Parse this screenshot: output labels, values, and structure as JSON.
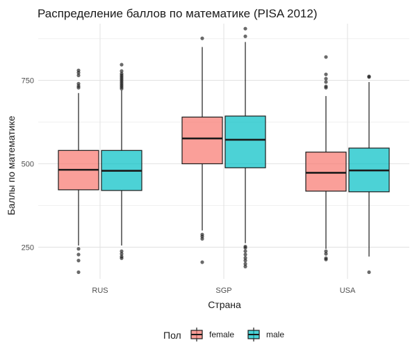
{
  "chart_data": {
    "type": "boxplot",
    "title": "Распределение баллов по математике (PISA 2012)",
    "xlabel": "Страна",
    "ylabel": "Баллы по математике",
    "categories": [
      "RUS",
      "SGP",
      "USA"
    ],
    "ylim": [
      155,
      920
    ],
    "yticks": [
      250,
      500,
      750
    ],
    "grid": true,
    "legend": {
      "title": "Пол",
      "position": "bottom",
      "entries": [
        {
          "key": "female",
          "label": "female",
          "color": "#F8766D"
        },
        {
          "key": "male",
          "label": "male",
          "color": "#00BFC4"
        }
      ]
    },
    "series": [
      {
        "key": "female",
        "color": "#F8766D",
        "boxes": [
          {
            "category": "RUS",
            "whisker_low": 255,
            "q1": 422,
            "median": 482,
            "q3": 540,
            "whisker_high": 712,
            "outliers": [
              175,
              210,
              228,
              245,
              728,
              733,
              740,
              765,
              773,
              780
            ]
          },
          {
            "category": "SGP",
            "whisker_low": 300,
            "q1": 500,
            "median": 576,
            "q3": 640,
            "whisker_high": 850,
            "outliers": [
              205,
              275,
              282,
              288,
              876
            ]
          },
          {
            "category": "USA",
            "whisker_low": 245,
            "q1": 418,
            "median": 473,
            "q3": 535,
            "whisker_high": 703,
            "outliers": [
              213,
              217,
              230,
              238,
              728,
              732,
              745,
              755,
              768,
              820
            ]
          }
        ]
      },
      {
        "key": "male",
        "color": "#00BFC4",
        "boxes": [
          {
            "category": "RUS",
            "whisker_low": 255,
            "q1": 420,
            "median": 479,
            "q3": 540,
            "whisker_high": 720,
            "outliers": [
              217,
              222,
              230,
              238,
              725,
              730,
              735,
              740,
              745,
              750,
              755,
              760,
              765,
              770,
              778,
              797
            ]
          },
          {
            "category": "SGP",
            "whisker_low": 262,
            "q1": 488,
            "median": 572,
            "q3": 643,
            "whisker_high": 865,
            "outliers": [
              192,
              200,
              210,
              218,
              228,
              238,
              248,
              252,
              882,
              905
            ]
          },
          {
            "category": "USA",
            "whisker_low": 222,
            "q1": 416,
            "median": 480,
            "q3": 547,
            "whisker_high": 745,
            "outliers": [
              175,
              760,
              762
            ]
          }
        ]
      }
    ]
  }
}
